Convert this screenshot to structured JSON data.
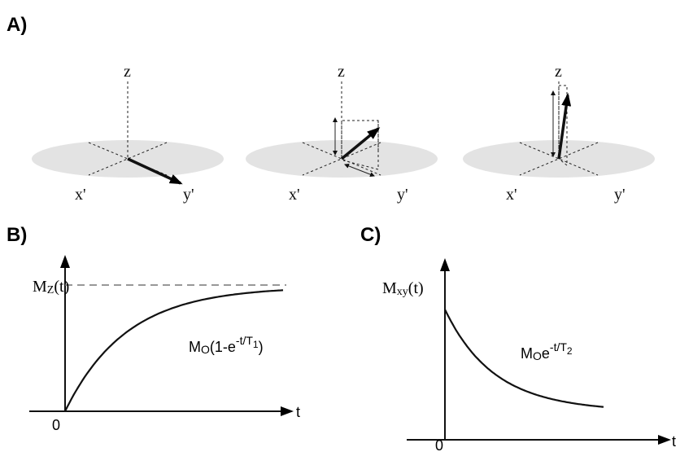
{
  "panels": {
    "a": {
      "label": "A)",
      "z": [
        "z",
        "z",
        "z"
      ],
      "x": [
        "x'",
        "x'",
        "x'"
      ],
      "y": [
        "y'",
        "y'",
        "y'"
      ]
    },
    "b": {
      "label": "B)",
      "ylabel": {
        "base": "M",
        "sub": "Z",
        "rest": "(t)"
      },
      "origin": "0",
      "xlabel": "t",
      "formula": {
        "base": "M",
        "sub": "O",
        "mid": "(1-e",
        "sup": "-t/T",
        "supsub": "1",
        "end": ")"
      }
    },
    "c": {
      "label": "C)",
      "ylabel": {
        "base": "M",
        "sub": "xy",
        "rest": "(t)"
      },
      "origin": "0",
      "xlabel": "t",
      "formula": {
        "base": "M",
        "sub": "O",
        "mid": "e",
        "sup": "-t/T",
        "supsub": "2"
      }
    }
  }
}
